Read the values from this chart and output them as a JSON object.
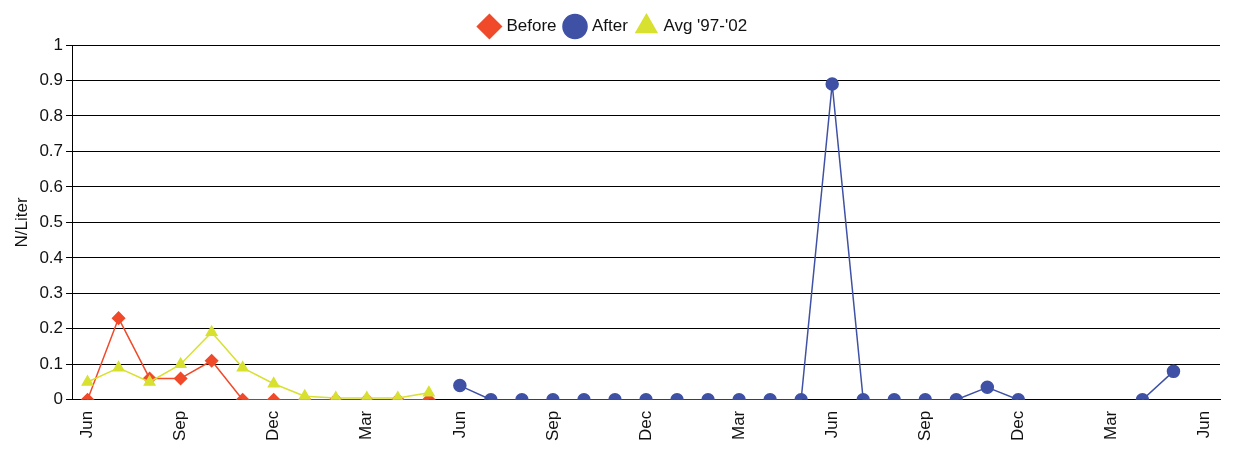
{
  "chart_data": {
    "type": "line",
    "ylabel": "N/Liter",
    "categories": [
      "Jun",
      null,
      null,
      "Sep",
      null,
      null,
      "Dec",
      null,
      null,
      "Mar",
      null,
      null,
      "Jun",
      null,
      null,
      "Sep",
      null,
      null,
      "Dec",
      null,
      null,
      "Mar",
      null,
      null,
      "Jun",
      null,
      null,
      "Sep",
      null,
      null,
      "Dec",
      null,
      null,
      "Mar",
      null,
      null,
      "Jun"
    ],
    "series": [
      {
        "name": "Before",
        "color": "#f04a2a",
        "marker": "diamond",
        "values": [
          0,
          0.23,
          0.06,
          0.06,
          0.11,
          0,
          0,
          0,
          0,
          0,
          0,
          0,
          null,
          null,
          null,
          null,
          null,
          null,
          null,
          null,
          null,
          null,
          null,
          null,
          null,
          null,
          null,
          null,
          null,
          null,
          null,
          null,
          null,
          null,
          null,
          null,
          null
        ]
      },
      {
        "name": "After",
        "color": "#3f51a5",
        "marker": "circle",
        "values": [
          null,
          null,
          null,
          null,
          null,
          null,
          null,
          null,
          null,
          null,
          null,
          null,
          0.04,
          0,
          0,
          0,
          0,
          0,
          0,
          0,
          0,
          0,
          0,
          0,
          0.89,
          0,
          0,
          0,
          0,
          0.035,
          0,
          null,
          null,
          null,
          0,
          0.08,
          null
        ]
      },
      {
        "name": "Avg '97-'02",
        "color": "#d8e030",
        "marker": "triangle",
        "values": [
          0.05,
          0.09,
          0.05,
          0.1,
          0.19,
          0.09,
          0.045,
          0.01,
          0.005,
          0.005,
          0.005,
          0.02,
          null,
          null,
          null,
          null,
          null,
          null,
          null,
          null,
          null,
          null,
          null,
          null,
          null,
          null,
          null,
          null,
          null,
          null,
          null,
          null,
          null,
          null,
          null,
          null,
          null
        ]
      }
    ],
    "ylim": [
      0,
      1
    ],
    "yticks": [
      0,
      0.1,
      0.2,
      0.3,
      0.4,
      0.5,
      0.6,
      0.7,
      0.8,
      0.9,
      1
    ],
    "grid": "y",
    "legend": "top"
  }
}
